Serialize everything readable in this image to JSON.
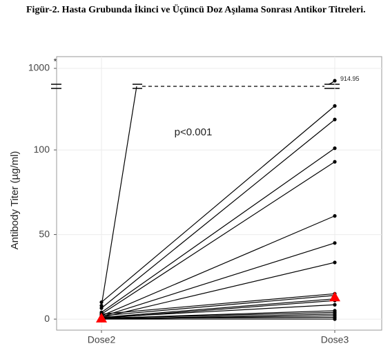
{
  "chart_data": {
    "type": "paired-line",
    "title": "Figür-2. Hasta Grubunda İkinci ve Üçüncü Doz Aşılama Sonrası Antikor Titreleri.",
    "y_label": "Antibody Titer (µg/ml)",
    "annotations": [
      "p<0.001",
      "*"
    ],
    "categories": [
      "Dose2",
      "Dose3"
    ],
    "color": "#000000",
    "ylim": [
      -6.5,
      1000
    ],
    "yticks": [
      0,
      50,
      100,
      1000
    ],
    "y_break": [
      130,
      900
    ],
    "grid": true,
    "series": [
      {
        "values": [
          8,
          914.95
        ],
        "value_labels": [
          null,
          "914.95"
        ]
      },
      {
        "values": [
          10,
          126
        ]
      },
      {
        "values": [
          6.5,
          118
        ]
      },
      {
        "values": [
          4,
          101
        ]
      },
      {
        "values": [
          3,
          93
        ]
      },
      {
        "values": [
          2,
          61
        ]
      },
      {
        "values": [
          1.5,
          45
        ]
      },
      {
        "values": [
          1,
          33.5
        ]
      },
      {
        "values": [
          3,
          15
        ]
      },
      {
        "values": [
          2,
          14
        ]
      },
      {
        "values": [
          1,
          12
        ]
      },
      {
        "values": [
          0.5,
          11
        ]
      },
      {
        "values": [
          1,
          8.5
        ]
      },
      {
        "values": [
          0.5,
          5
        ]
      },
      {
        "values": [
          0.5,
          4
        ]
      },
      {
        "values": [
          0,
          3
        ]
      },
      {
        "values": [
          0,
          2
        ]
      },
      {
        "values": [
          0.5,
          1
        ]
      },
      {
        "values": [
          0,
          0
        ]
      },
      {
        "values": [
          0.5,
          13
        ],
        "color": "#ff0000",
        "marker": "triangle"
      }
    ]
  }
}
